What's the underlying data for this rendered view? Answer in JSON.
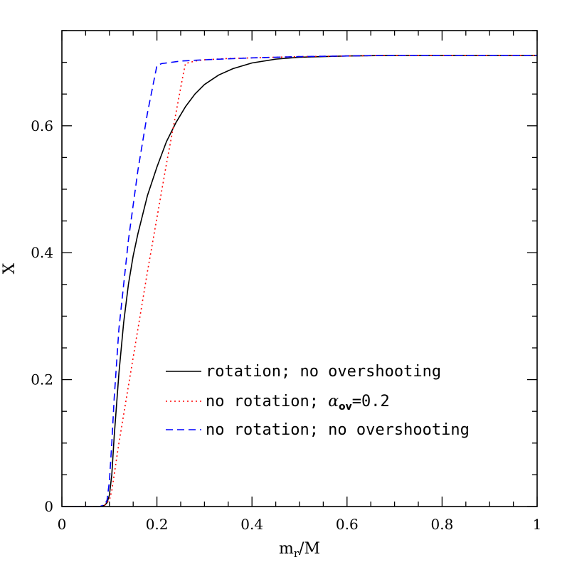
{
  "chart_data": {
    "type": "line",
    "xlabel": "m",
    "xlabel_sub": "r",
    "xlabel_suffix": "/M",
    "ylabel": "X",
    "xlim": [
      0,
      1
    ],
    "ylim": [
      0,
      0.75
    ],
    "x_ticks": [
      0,
      0.2,
      0.4,
      0.6,
      0.8,
      1
    ],
    "x_tick_labels": [
      "0",
      "0.2",
      "0.4",
      "0.6",
      "0.8",
      "1"
    ],
    "y_ticks": [
      0,
      0.2,
      0.4,
      0.6
    ],
    "y_tick_labels": [
      "0",
      "0.2",
      "0.4",
      "0.6"
    ],
    "x_minor_step": 0.05,
    "y_minor_step": 0.05,
    "legend_position": "lower-right",
    "series": [
      {
        "name": "rotation; no overshooting",
        "color": "#000000",
        "style": "solid",
        "x": [
          0,
          0.08,
          0.09,
          0.095,
          0.1,
          0.105,
          0.11,
          0.12,
          0.13,
          0.14,
          0.15,
          0.16,
          0.18,
          0.2,
          0.22,
          0.24,
          0.26,
          0.28,
          0.3,
          0.33,
          0.36,
          0.4,
          0.45,
          0.5,
          0.55,
          0.6,
          0.7,
          0.8,
          0.9,
          1.0
        ],
        "y": [
          0,
          0,
          0.002,
          0.006,
          0.018,
          0.05,
          0.11,
          0.21,
          0.29,
          0.35,
          0.395,
          0.43,
          0.49,
          0.535,
          0.575,
          0.605,
          0.63,
          0.65,
          0.665,
          0.68,
          0.69,
          0.699,
          0.705,
          0.708,
          0.709,
          0.71,
          0.711,
          0.711,
          0.711,
          0.711
        ]
      },
      {
        "name": "no rotation; ",
        "name_symbol": "α",
        "name_sub": "ov",
        "name_suffix": "=0.2",
        "color": "#ff0000",
        "style": "dotted",
        "x": [
          0,
          0.08,
          0.09,
          0.1,
          0.105,
          0.11,
          0.12,
          0.14,
          0.16,
          0.18,
          0.2,
          0.22,
          0.24,
          0.255,
          0.26,
          0.28,
          0.3,
          0.35,
          0.4,
          0.5,
          0.6,
          0.7,
          0.8,
          0.9,
          1.0
        ],
        "y": [
          0,
          0,
          0.002,
          0.01,
          0.025,
          0.05,
          0.1,
          0.19,
          0.28,
          0.37,
          0.455,
          0.54,
          0.62,
          0.68,
          0.698,
          0.702,
          0.704,
          0.706,
          0.707,
          0.709,
          0.71,
          0.711,
          0.711,
          0.711,
          0.711
        ]
      },
      {
        "name": "no rotation; no overshooting",
        "color": "#0000ff",
        "style": "dashed",
        "x": [
          0,
          0.08,
          0.09,
          0.095,
          0.1,
          0.105,
          0.11,
          0.12,
          0.14,
          0.16,
          0.18,
          0.2,
          0.21,
          0.25,
          0.3,
          0.4,
          0.5,
          0.6,
          0.7,
          0.8,
          0.9,
          1.0
        ],
        "y": [
          0,
          0,
          0.003,
          0.01,
          0.04,
          0.1,
          0.17,
          0.28,
          0.42,
          0.53,
          0.62,
          0.695,
          0.698,
          0.702,
          0.704,
          0.707,
          0.709,
          0.71,
          0.711,
          0.711,
          0.711,
          0.711
        ]
      }
    ]
  }
}
